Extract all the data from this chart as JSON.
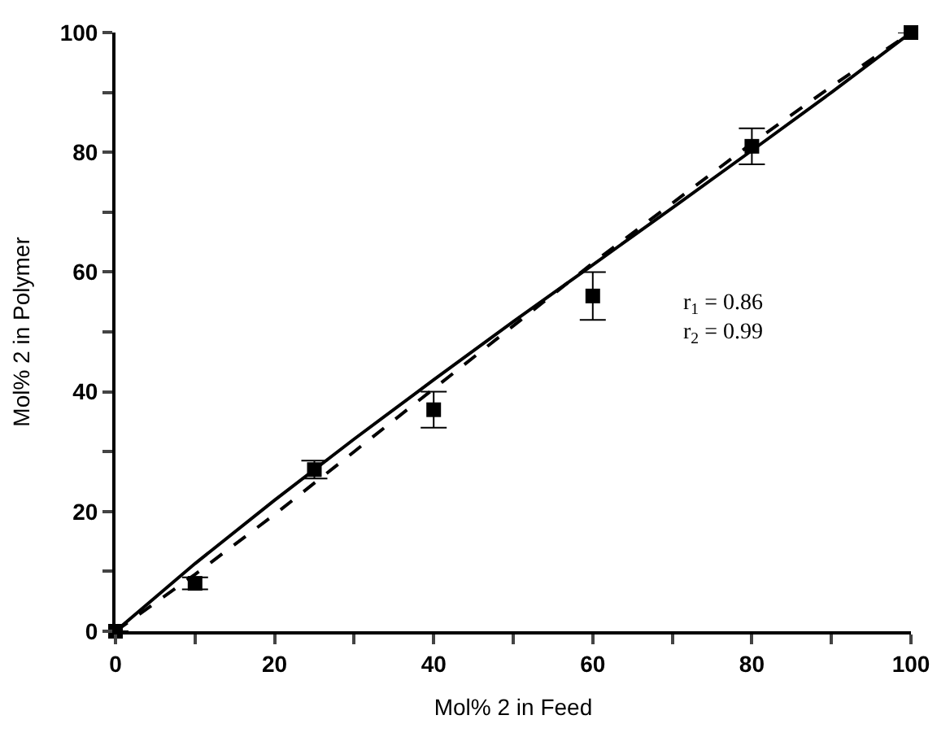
{
  "chart_data": {
    "type": "scatter",
    "xlabel": "Mol% 2 in Feed",
    "ylabel": "Mol% 2 in Polymer",
    "xlim": [
      0,
      100
    ],
    "ylim": [
      0,
      100
    ],
    "xticks": [
      0,
      {
        "value": 10,
        "label": null
      },
      20,
      {
        "value": 30,
        "label": null
      },
      40,
      {
        "value": 50,
        "label": null
      },
      60,
      {
        "value": 70,
        "label": null
      },
      80,
      {
        "value": 90,
        "label": null
      },
      100
    ],
    "yticks": [
      0,
      {
        "value": 10,
        "label": null
      },
      20,
      {
        "value": 30,
        "label": null
      },
      40,
      {
        "value": 50,
        "label": null
      },
      60,
      {
        "value": 70,
        "label": null
      },
      80,
      {
        "value": 90,
        "label": null
      },
      100
    ],
    "series": [
      {
        "color": "#000000",
        "marker": "square",
        "x": [
          0,
          10,
          25,
          40,
          60,
          80,
          100
        ],
        "values": [
          0,
          8,
          27,
          37,
          56,
          81,
          100
        ],
        "errors": [
          null,
          1,
          1.5,
          3,
          4,
          3,
          null
        ]
      },
      {
        "type": "line",
        "color": "#000000",
        "line_style": "solid",
        "marker": "none",
        "x": [
          0,
          10,
          20,
          30,
          40,
          50,
          60,
          70,
          80,
          90,
          100
        ],
        "values": [
          0,
          11.3,
          21.9,
          32.1,
          42,
          51.7,
          61.2,
          70.7,
          80.3,
          90,
          100
        ]
      },
      {
        "type": "line",
        "color": "#000000",
        "line_style": "dashed",
        "marker": "none",
        "x": [
          0,
          10,
          20,
          30,
          40,
          50,
          60,
          70,
          80,
          90,
          100
        ],
        "values": [
          0,
          9.5,
          19.5,
          30,
          40.5,
          51,
          61.5,
          71.5,
          81.5,
          91,
          100
        ]
      }
    ],
    "annotations": [
      "r$_{1}$ = 0.86\nr$_{2}$ = 0.99"
    ]
  }
}
